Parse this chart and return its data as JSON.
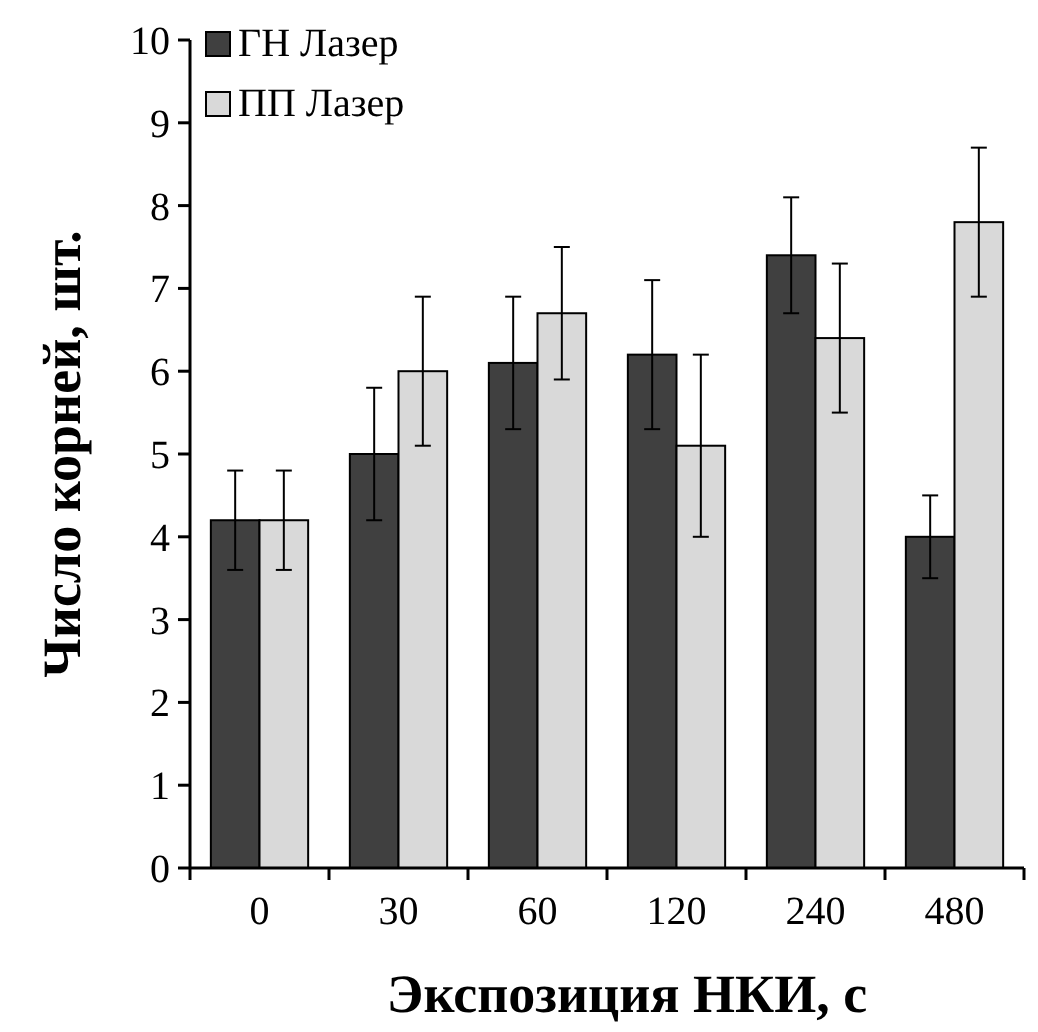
{
  "chart_data": {
    "type": "bar",
    "xlabel": "Экспозиция НКИ, с",
    "ylabel": "Число корней, шт.",
    "categories": [
      "0",
      "30",
      "60",
      "120",
      "240",
      "480"
    ],
    "series": [
      {
        "name": "ГН Лазер",
        "color": "#404040",
        "values": [
          4.2,
          5.0,
          6.1,
          6.2,
          7.4,
          4.0
        ],
        "errors": [
          0.6,
          0.8,
          0.8,
          0.9,
          0.7,
          0.5
        ]
      },
      {
        "name": "ПП Лазер",
        "color": "#d9d9d9",
        "values": [
          4.2,
          6.0,
          6.7,
          5.1,
          6.4,
          7.8
        ],
        "errors": [
          0.6,
          0.9,
          0.8,
          1.1,
          0.9,
          0.9
        ]
      }
    ],
    "ylim": [
      0,
      10
    ],
    "yticks": [
      0,
      1,
      2,
      3,
      4,
      5,
      6,
      7,
      8,
      9,
      10
    ],
    "grid": false,
    "legend": "top left"
  }
}
